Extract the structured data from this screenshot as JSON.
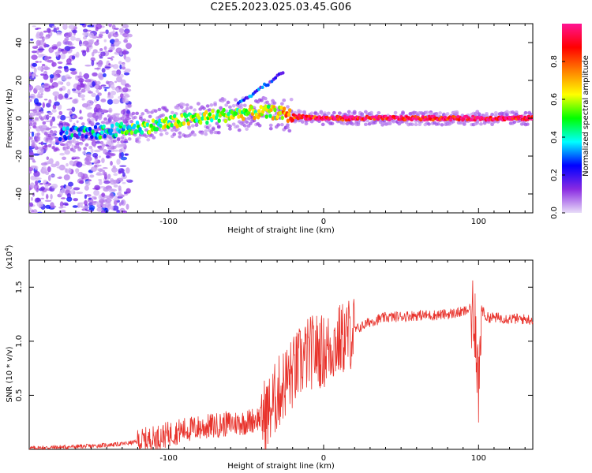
{
  "figure": {
    "title": "C2E5.2023.025.03.45.G06"
  },
  "chart_data": [
    {
      "type": "heatmap",
      "panel": "top",
      "xlabel": "Height of straight line (km)",
      "ylabel": "Frequency (Hz)",
      "xlim": [
        -190,
        135
      ],
      "ylim": [
        -50,
        50
      ],
      "xticks": [
        -100,
        0,
        100
      ],
      "yticks": [
        -40,
        -20,
        0,
        20,
        40
      ],
      "colorbar": {
        "label": "Normalized spectral amplitude",
        "range": [
          0,
          1
        ],
        "ticks": [
          "0.0",
          "0.2",
          "0.4",
          "0.6",
          "0.8"
        ],
        "colors": [
          "#e8dcf8",
          "#8a2be2",
          "#0000ff",
          "#00ffff",
          "#00ff00",
          "#ffff00",
          "#ff8000",
          "#ff0000",
          "#ff1493"
        ]
      },
      "ridge": {
        "description_points": [
          {
            "x": -170,
            "y": -8,
            "amp": 0.25
          },
          {
            "x": -150,
            "y": -8,
            "amp": 0.35
          },
          {
            "x": -130,
            "y": -6,
            "amp": 0.45
          },
          {
            "x": -110,
            "y": -4,
            "amp": 0.5
          },
          {
            "x": -90,
            "y": -1,
            "amp": 0.55
          },
          {
            "x": -70,
            "y": 1,
            "amp": 0.55
          },
          {
            "x": -50,
            "y": 3,
            "amp": 0.55
          },
          {
            "x": -30,
            "y": 3,
            "amp": 0.6
          },
          {
            "x": -20,
            "y": 1,
            "amp": 0.85
          },
          {
            "x": 0,
            "y": 0,
            "amp": 0.9
          },
          {
            "x": 50,
            "y": 0,
            "amp": 0.95
          },
          {
            "x": 100,
            "y": 0,
            "amp": 0.95
          },
          {
            "x": 135,
            "y": 0,
            "amp": 0.9
          }
        ]
      }
    },
    {
      "type": "line",
      "panel": "bottom",
      "xlabel": "Height of straight line (km)",
      "ylabel": "SNR (10 * v/v)",
      "yscale_label": "(x10",
      "yscale_exp": "4",
      "yscale_close": ")",
      "xlim": [
        -190,
        135
      ],
      "ylim": [
        0,
        1.75
      ],
      "xticks": [
        -100,
        0,
        100
      ],
      "yticks": [
        0.5,
        1.0,
        1.5
      ],
      "ytick_labels": [
        "0.5",
        "1.0",
        "1.5"
      ],
      "series": [
        {
          "color": "#e8322b",
          "x": [
            -190,
            -170,
            -150,
            -130,
            -120,
            -110,
            -100,
            -90,
            -80,
            -70,
            -60,
            -50,
            -40,
            -35,
            -30,
            -25,
            -20,
            -15,
            -10,
            -5,
            0,
            10,
            20,
            30,
            40,
            50,
            60,
            70,
            80,
            90,
            95,
            98,
            100,
            102,
            105,
            110,
            120,
            135
          ],
          "y": [
            0.01,
            0.02,
            0.03,
            0.05,
            0.07,
            0.1,
            0.14,
            0.18,
            0.2,
            0.22,
            0.24,
            0.25,
            0.3,
            0.35,
            0.5,
            0.62,
            0.7,
            0.8,
            0.88,
            0.92,
            0.9,
            1.0,
            1.1,
            1.18,
            1.22,
            1.23,
            1.24,
            1.24,
            1.25,
            1.27,
            1.3,
            1.2,
            0.55,
            1.3,
            1.22,
            1.22,
            1.21,
            1.2
          ]
        }
      ]
    }
  ]
}
